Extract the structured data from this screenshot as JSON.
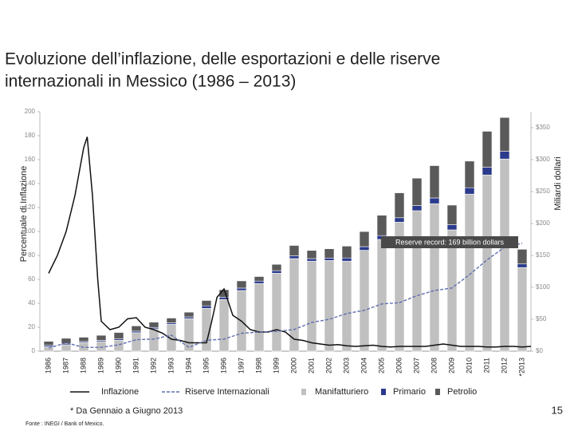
{
  "chart_data": {
    "type": "bar",
    "stacked": true,
    "title": [
      "Evoluzione dell’inflazione, delle esportazioni e delle riserve",
      "internazionali in Messico (1986 – 2013)"
    ],
    "y_label": "Percentuale di Inflazione",
    "y2_label": "Miliardi dollari",
    "categories": [
      "1986",
      "1987",
      "1988",
      "1989",
      "1990",
      "1991",
      "1992",
      "1993",
      "1994",
      "1995",
      "1996",
      "1997",
      "1998",
      "1999",
      "2000",
      "2001",
      "2002",
      "2003",
      "2004",
      "2005",
      "2006",
      "2007",
      "2008",
      "2009",
      "2010",
      "2011",
      "2012",
      "*2013"
    ],
    "xlim": [
      1985.5,
      2013.5
    ],
    "ylim": [
      0,
      200
    ],
    "yticks": [
      0,
      20,
      40,
      60,
      80,
      100,
      120,
      140,
      160,
      180,
      200
    ],
    "y2lim": [
      0,
      375
    ],
    "y2ticks": [
      {
        "value": 0,
        "label": "$0"
      },
      {
        "value": 50,
        "label": "$50"
      },
      {
        "value": 100,
        "label": "$100"
      },
      {
        "value": 150,
        "label": "$150"
      },
      {
        "value": 200,
        "label": "$200"
      },
      {
        "value": 250,
        "label": "$250"
      },
      {
        "value": 300,
        "label": "$300"
      },
      {
        "value": 350,
        "label": "$350"
      }
    ],
    "grid": false,
    "series": [
      {
        "name": "Manifatturiero",
        "type": "bar",
        "axis": "y2",
        "color": "#c0c0c0",
        "values": [
          7.1,
          10,
          13.5,
          15,
          17,
          29,
          35,
          42,
          51,
          67,
          81,
          95,
          106,
          122,
          145,
          141,
          142,
          141,
          158,
          175,
          202,
          220,
          231,
          190,
          246,
          276,
          301,
          131
        ]
      },
      {
        "name": "Primario",
        "type": "bar",
        "axis": "y2",
        "color": "#2b3a8c",
        "values": [
          2.1,
          1.6,
          1.7,
          2,
          2.2,
          2.4,
          2.2,
          2.5,
          2.7,
          4,
          3.6,
          3.8,
          3.8,
          4.1,
          4.2,
          4,
          3.9,
          5,
          5.7,
          6,
          7,
          8,
          9,
          8,
          10,
          12,
          12,
          5.6
        ]
      },
      {
        "name": "Petrolio",
        "type": "bar",
        "axis": "y2",
        "color": "#5a5a5a",
        "values": [
          6.3,
          8.6,
          6.7,
          7.9,
          10.1,
          8.2,
          8.3,
          7.4,
          7.4,
          8.4,
          11.7,
          11.3,
          7.1,
          9.9,
          16.4,
          12.8,
          14.5,
          18.6,
          23.7,
          31.9,
          39,
          43,
          50.6,
          30.8,
          41.7,
          56.4,
          53,
          23
        ]
      },
      {
        "name": "Inflazione",
        "type": "line",
        "axis": "y",
        "color": "#111111",
        "x": [
          1986,
          1986.5,
          1987,
          1987.5,
          1988,
          1988.2,
          1988.5,
          1988.8,
          1989,
          1989.5,
          1990,
          1990.5,
          1991,
          1991.5,
          1992,
          1992.5,
          1993,
          1993.5,
          1994,
          1994.5,
          1995,
          1995.3,
          1995.6,
          1996,
          1996.5,
          1997,
          1997.5,
          1998,
          1998.5,
          1999,
          1999.5,
          2000,
          2000.5,
          2001,
          2001.5,
          2002,
          2002.5,
          2003,
          2003.5,
          2004,
          2004.5,
          2005,
          2005.5,
          2006,
          2006.5,
          2007,
          2007.5,
          2008,
          2008.5,
          2009,
          2009.5,
          2010,
          2010.5,
          2011,
          2011.5,
          2012,
          2012.5,
          2013,
          2013.5
        ],
        "values": [
          65,
          80,
          100,
          130,
          170,
          179,
          130,
          60,
          25,
          18,
          20,
          27,
          28,
          20,
          18,
          15,
          10,
          9,
          7,
          7,
          7,
          25,
          45,
          52,
          30,
          25,
          18,
          16,
          16,
          18,
          16,
          10,
          9,
          7,
          6,
          5,
          5.5,
          4.5,
          4,
          4.5,
          5,
          4,
          3.5,
          4,
          4,
          4,
          4,
          5,
          6,
          5,
          4,
          4,
          4,
          3.5,
          3.5,
          4,
          4,
          3.5,
          4
        ]
      },
      {
        "name": "Riserve Internazionali",
        "type": "line",
        "axis": "y2",
        "color": "#5f6fb0",
        "dashed": true,
        "x": [
          1986,
          1987,
          1988,
          1989,
          1990,
          1991,
          1992,
          1993,
          1994,
          1995,
          1996,
          1997,
          1998,
          1999,
          2000,
          2001,
          2002,
          2003,
          2004,
          2005,
          2006,
          2007,
          2008,
          2009,
          2010,
          2011,
          2012,
          2013
        ],
        "values": [
          5,
          13,
          6,
          6,
          10,
          18,
          19,
          25,
          6,
          17,
          19,
          28,
          30,
          31,
          34,
          45,
          50,
          59,
          64,
          74,
          76,
          87,
          95,
          99,
          120,
          143,
          163,
          169
        ]
      }
    ],
    "annotation": "Reserve record: 169 billion dollars",
    "footnote": "* Da Gennaio a Giugno 2013",
    "source": "Fonte : INEGI / Bank of Mexico.",
    "page_number": "15"
  }
}
